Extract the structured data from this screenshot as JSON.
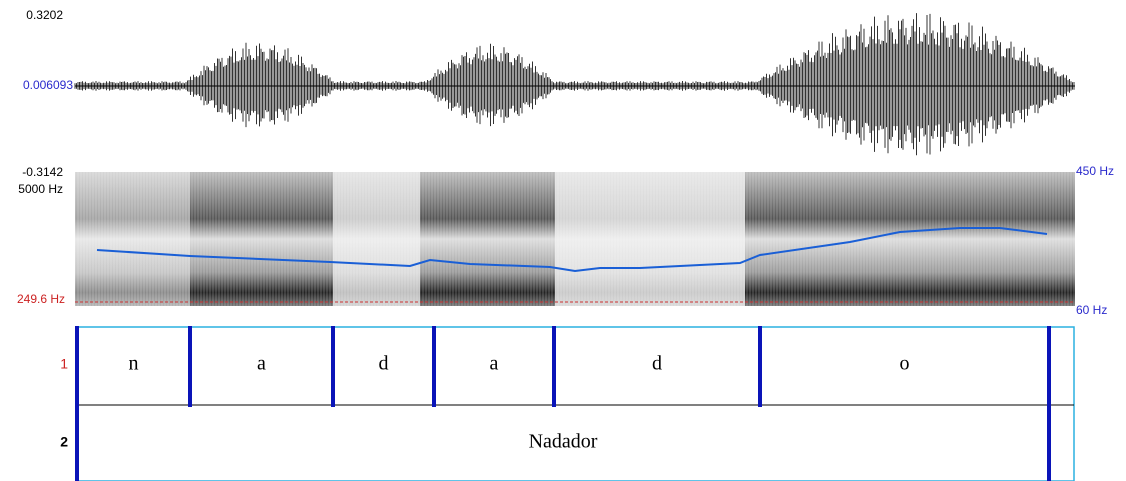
{
  "waveform": {
    "max_label": "0.3202",
    "zero_label": "0.006093",
    "min_label": "-0.3142"
  },
  "spectrogram": {
    "freq_top": "5000 Hz",
    "freq_bottom": "249.6 Hz",
    "pitch_top": "450 Hz",
    "pitch_bottom": "60 Hz"
  },
  "tiers": [
    {
      "number": "1",
      "intervals": [
        "n",
        "a",
        "d",
        "a",
        "d",
        "o"
      ]
    },
    {
      "number": "2",
      "intervals": [
        "Nadador"
      ]
    }
  ]
}
